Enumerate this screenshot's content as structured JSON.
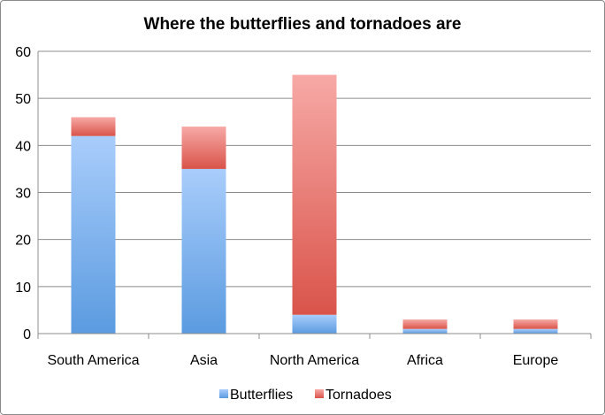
{
  "chart_data": {
    "type": "bar",
    "stacked": true,
    "title": "Where the butterflies and tornadoes are",
    "xlabel": "",
    "ylabel": "",
    "ylim": [
      0,
      60
    ],
    "yticks": [
      0,
      10,
      20,
      30,
      40,
      50,
      60
    ],
    "grid": true,
    "legend_position": "bottom",
    "categories": [
      "South America",
      "Asia",
      "North America",
      "Africa",
      "Europe"
    ],
    "series": [
      {
        "name": "Butterflies",
        "values": [
          42,
          35,
          4,
          1,
          1
        ],
        "color": "#5b9be0",
        "color_light": "#a9cdfb"
      },
      {
        "name": "Tornadoes",
        "values": [
          4,
          9,
          51,
          2,
          2
        ],
        "color": "#d9544a",
        "color_light": "#f7a9a6"
      }
    ]
  }
}
